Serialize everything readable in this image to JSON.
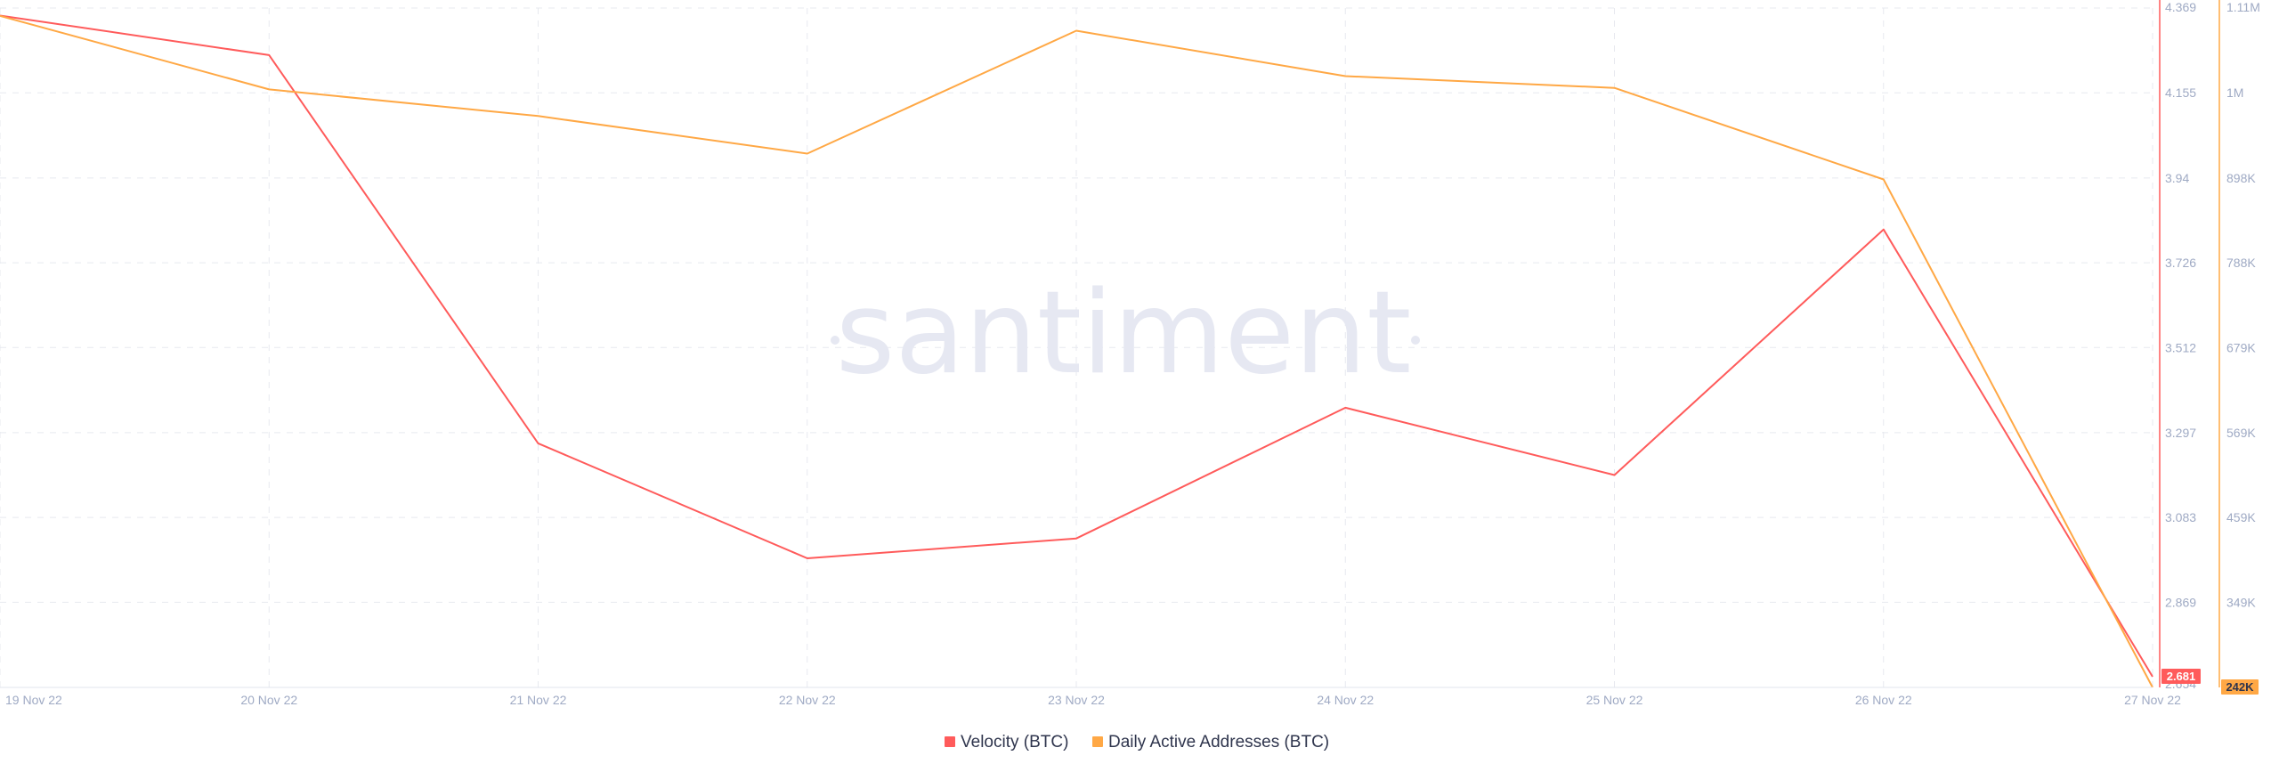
{
  "watermark": "santiment",
  "chart_data": {
    "type": "line",
    "x": [
      "19 Nov 22",
      "20 Nov 22",
      "21 Nov 22",
      "22 Nov 22",
      "23 Nov 22",
      "24 Nov 22",
      "25 Nov 22",
      "26 Nov 22",
      "27 Nov 22"
    ],
    "series": [
      {
        "name": "Velocity (BTC)",
        "color": "#ff5b5b",
        "axis": "left",
        "values": [
          4.35,
          4.25,
          3.27,
          2.98,
          3.03,
          3.36,
          3.19,
          3.81,
          2.681
        ]
      },
      {
        "name": "Daily Active Addresses (BTC)",
        "color": "#ffa845",
        "axis": "right",
        "values": [
          1100000,
          1006000,
          972000,
          924000,
          1081000,
          1023000,
          1008000,
          891000,
          242000
        ]
      }
    ],
    "y_axis_left": {
      "ticks": [
        "4.369",
        "4.155",
        "3.94",
        "3.726",
        "3.512",
        "3.297",
        "3.083",
        "2.869",
        "2.654"
      ],
      "ylim": [
        2.654,
        4.369
      ]
    },
    "y_axis_right": {
      "ticks": [
        "1.11M",
        "1M",
        "898K",
        "788K",
        "679K",
        "569K",
        "459K",
        "349K"
      ],
      "ylim": [
        242000,
        1110000
      ]
    },
    "last_value_flags": {
      "left": "2.681",
      "right": "242K"
    },
    "grid": true,
    "legend_position": "bottom-center"
  }
}
